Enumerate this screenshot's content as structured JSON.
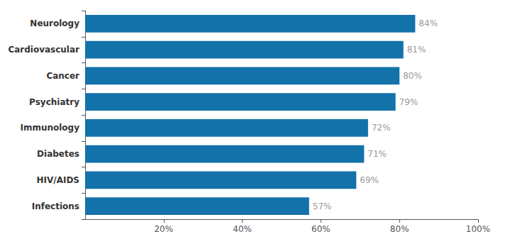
{
  "chart_data": {
    "type": "bar",
    "orientation": "horizontal",
    "categories": [
      "Neurology",
      "Cardiovascular",
      "Cancer",
      "Psychiatry",
      "Immunology",
      "Diabetes",
      "HIV/AIDS",
      "Infections"
    ],
    "values": [
      84,
      81,
      80,
      79,
      72,
      71,
      69,
      57
    ],
    "value_labels": [
      "84%",
      "81%",
      "80%",
      "79%",
      "72%",
      "71%",
      "69%",
      "57%"
    ],
    "data_labels": true,
    "color": "#1472aa",
    "xlim": [
      0,
      100
    ],
    "xticks": [
      {
        "value": 20,
        "label": "20%"
      },
      {
        "value": 40,
        "label": "40%"
      },
      {
        "value": 60,
        "label": "60%"
      },
      {
        "value": 80,
        "label": "80%"
      },
      {
        "value": 100,
        "label": "100%"
      }
    ],
    "grid": false
  }
}
